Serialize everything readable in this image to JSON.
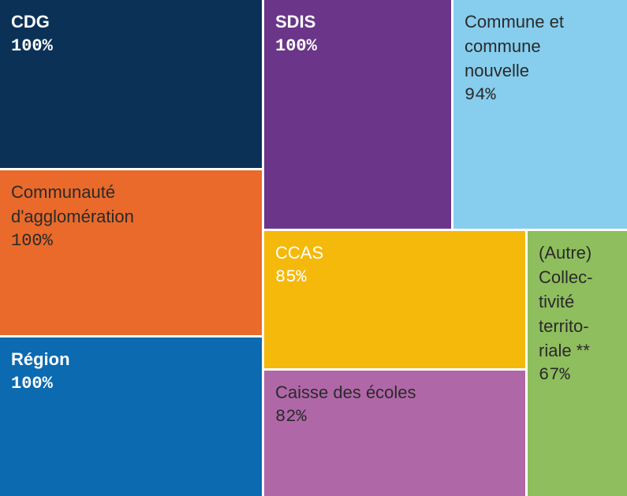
{
  "chart_data": {
    "type": "treemap",
    "categories": [
      "CDG",
      "Communauté\nd'agglomération",
      "Région",
      "SDIS",
      "Commune et\ncommune\nnouvelle",
      "CCAS",
      "Caisse des écoles",
      "(Autre)\nCollec-\ntivité\nterrito-\nriale **"
    ],
    "values": [
      100,
      100,
      100,
      100,
      94,
      85,
      82,
      67
    ],
    "value_labels": [
      "100%",
      "100%",
      "100%",
      "100%",
      "94%",
      "85%",
      "82%",
      "67%"
    ],
    "colors": [
      "#0b3157",
      "#e96a2b",
      "#0b6ab0",
      "#6b3589",
      "#87cdee",
      "#f5b90c",
      "#b067a8",
      "#8ebe5d"
    ]
  }
}
